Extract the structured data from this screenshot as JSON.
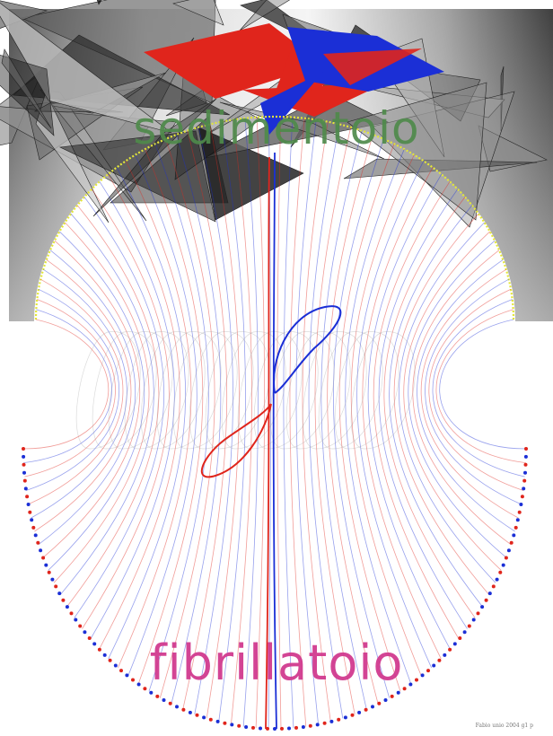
{
  "texts": {
    "title_top": "sedimentoio",
    "title_bottom": "fibrillatoio",
    "credit": "Fabio unio 2004 g1 p"
  },
  "colors": {
    "background": "#ffffff",
    "red": "#e0251c",
    "blue": "#1b2fd6",
    "yellow": "#e3e63a",
    "title_top": "#4f8a4b",
    "title_bottom": "#d13a8f"
  }
}
